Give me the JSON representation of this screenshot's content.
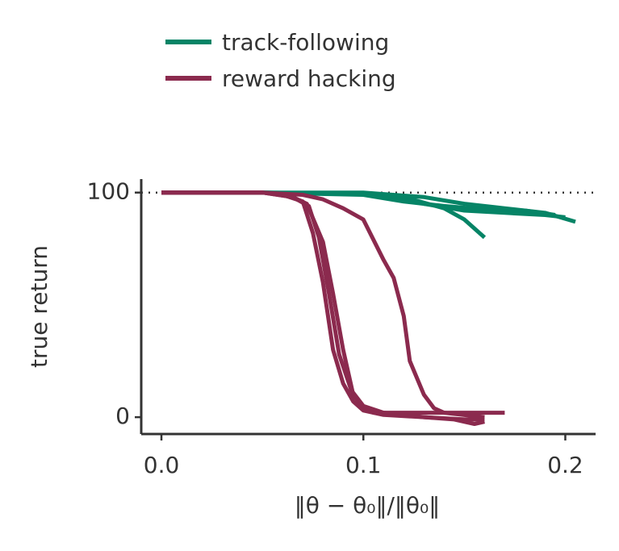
{
  "chart_data": {
    "type": "line",
    "xlabel": "‖θ − θ₀‖/‖θ₀‖",
    "ylabel": "true return",
    "xlim": [
      -0.01,
      0.215
    ],
    "ylim": [
      -7.5,
      106
    ],
    "xticks": [
      {
        "value": 0,
        "label": "0.0"
      },
      0.1,
      0.2
    ],
    "yticks": [
      0,
      100
    ],
    "hline": 100,
    "legend": "top",
    "series": [
      {
        "name": "track-following",
        "color": "#068466",
        "runs": [
          {
            "x": [
              0,
              0.05,
              0.1,
              0.12,
              0.14,
              0.15,
              0.16
            ],
            "values": [
              100,
              100,
              99.5,
              98,
              93,
              88,
              80
            ]
          },
          {
            "x": [
              0,
              0.05,
              0.1,
              0.13,
              0.15,
              0.17,
              0.19,
              0.205
            ],
            "values": [
              100,
              100,
              100,
              98,
              95,
              93,
              91,
              87
            ]
          },
          {
            "x": [
              0,
              0.05,
              0.1,
              0.12,
              0.14,
              0.16,
              0.18,
              0.195
            ],
            "values": [
              100,
              100,
              99,
              96,
              94,
              92.5,
              92,
              90
            ]
          },
          {
            "x": [
              0,
              0.05,
              0.11,
              0.13,
              0.15,
              0.17,
              0.19,
              0.2
            ],
            "values": [
              100,
              100,
              99,
              95,
              92,
              91,
              90,
              89
            ]
          }
        ]
      },
      {
        "name": "reward hacking",
        "color": "#8b2a4e",
        "runs": [
          {
            "x": [
              0,
              0.05,
              0.06,
              0.07,
              0.075,
              0.08,
              0.085,
              0.09,
              0.095,
              0.1,
              0.11,
              0.13,
              0.15,
              0.16
            ],
            "values": [
              100,
              100,
              99,
              96,
              82,
              60,
              30,
              15,
              7,
              3,
              1,
              0,
              -1,
              -1
            ]
          },
          {
            "x": [
              0,
              0.05,
              0.065,
              0.072,
              0.08,
              0.085,
              0.09,
              0.095,
              0.1,
              0.105,
              0.13,
              0.17
            ],
            "values": [
              100,
              100,
              98,
              95,
              78,
              55,
              30,
              10,
              4,
              2,
              2,
              2
            ]
          },
          {
            "x": [
              0,
              0.05,
              0.07,
              0.08,
              0.09,
              0.1,
              0.11,
              0.115,
              0.12,
              0.123,
              0.13,
              0.135,
              0.14,
              0.16
            ],
            "values": [
              100,
              100,
              99,
              97,
              93,
              88,
              70,
              62,
              45,
              25,
              10,
              4,
              2,
              0
            ]
          },
          {
            "x": [
              0,
              0.05,
              0.065,
              0.073,
              0.078,
              0.083,
              0.088,
              0.094,
              0.1,
              0.11,
              0.13,
              0.145,
              0.155,
              0.16
            ],
            "values": [
              100,
              100,
              98,
              94,
              80,
              55,
              28,
              12,
              5,
              2,
              0,
              -1,
              -3,
              -2
            ]
          }
        ]
      }
    ]
  }
}
